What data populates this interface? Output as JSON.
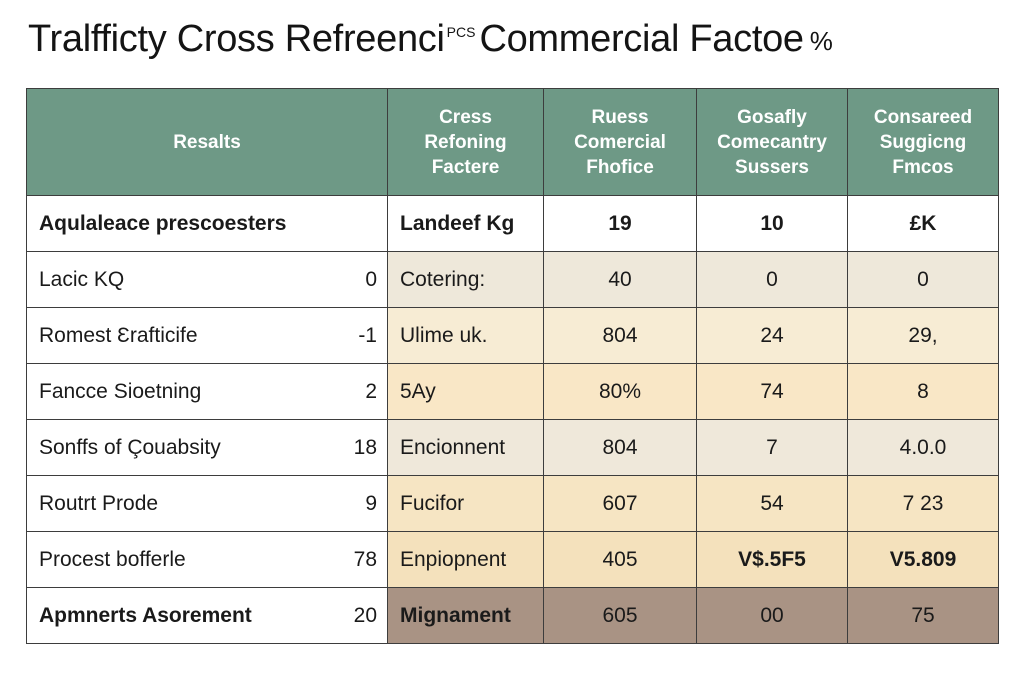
{
  "title": {
    "main": "Tralfficty Cross Refreenci",
    "superscript": "PCS",
    "tail": "Commercial Factoe",
    "suffix": "%"
  },
  "table": {
    "headers": [
      [
        "Resalts"
      ],
      [
        "Cress",
        "Refoning",
        "Factere"
      ],
      [
        "Ruess",
        "Comercial",
        "Fhofice"
      ],
      [
        "Gosafly",
        "Comecantry",
        "Sussers"
      ],
      [
        "Consareed",
        "Suggicng",
        "Fmcos"
      ]
    ],
    "rows": [
      {
        "label": "Aqulaleace prescoesters",
        "num": "",
        "c2": "Landeef Kg",
        "c3": "19",
        "c4": "10",
        "c5": "£K"
      },
      {
        "label": "Lacic KQ",
        "num": "0",
        "c2": "Cotering:",
        "c3": "40",
        "c4": "0",
        "c5": "0"
      },
      {
        "label": "Romest Ɛrafticife",
        "num": "-1",
        "c2": "Ulime uk.",
        "c3": "804",
        "c4": "24",
        "c5": "29,"
      },
      {
        "label": "Fancce Sioetning",
        "num": "2",
        "c2": "5Ay",
        "c3": "80%",
        "c4": "74",
        "c5": "8"
      },
      {
        "label": "Sonffs of Çouabsity",
        "num": "18",
        "c2": "Encionnent",
        "c3": "804",
        "c4": "7",
        "c5": "4.0.0"
      },
      {
        "label": "Routrt Prode",
        "num": "9",
        "c2": "Fucifor",
        "c3": "607",
        "c4": "54",
        "c5": "7 23"
      },
      {
        "label": "Procest bofferle",
        "num": "78",
        "c2": "Enpiopnent",
        "c3": "405",
        "c4": "V$.5F5",
        "c5": "V5.809"
      },
      {
        "label": "Apmnerts Asorement",
        "num": "20",
        "c2": "Mignament",
        "c3": "605",
        "c4": "00",
        "c5": "75"
      }
    ]
  }
}
